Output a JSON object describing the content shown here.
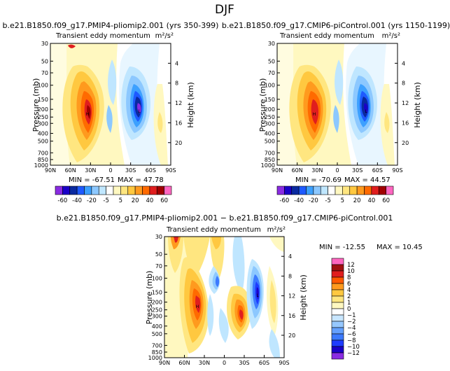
{
  "page": {
    "season": "DJF"
  },
  "colors": {
    "pal_top": [
      "#8a2be2",
      "#1a00c8",
      "#0a2aa0",
      "#1e5aff",
      "#3ca0ff",
      "#8cc8ff",
      "#bfe6ff",
      "#ffffff",
      "#fff8c0",
      "#ffe680",
      "#ffc840",
      "#ff9a1e",
      "#ff6a00",
      "#e01e1e",
      "#a00000",
      "#ff66c0"
    ],
    "pal_diff": [
      "#8a2be2",
      "#1a00c8",
      "#1e3cff",
      "#3c7aff",
      "#64a0ff",
      "#96c8ff",
      "#c8e6ff",
      "#ffffff",
      "#fff8c0",
      "#ffe680",
      "#ffc840",
      "#ff9a1e",
      "#ff5a00",
      "#e01e1e",
      "#a01010",
      "#ff66c0"
    ],
    "outline": "#000000"
  },
  "chart_data": [
    {
      "type": "contour",
      "title": "b.e21.B1850.f09_g17.PMIP4-pliomip2.001 (yrs 350-399)",
      "subtitle": "Transient eddy momentum",
      "units": "m²/s²",
      "xlabel": "",
      "ylabel": "Pressure (mb)",
      "ylabel_right": "Height (km)",
      "x_ticks": [
        "90N",
        "60N",
        "30N",
        "0",
        "30S",
        "60S",
        "90S"
      ],
      "y_ticks": [
        "30",
        "50",
        "70",
        "100",
        "150",
        "200",
        "250",
        "300",
        "400",
        "500",
        "700",
        "850",
        "1000"
      ],
      "y_right_ticks": [
        "4",
        "8",
        "12",
        "16",
        "20"
      ],
      "min_label": "MIN = -67.51",
      "max_label": "MAX =  47.78",
      "levels": [
        "-60",
        "-40",
        "-20",
        "-5",
        "5",
        "20",
        "40",
        "60"
      ],
      "features": [
        {
          "lat": -32,
          "p": 250,
          "value": 47,
          "note": "positive maximum"
        },
        {
          "lat": 42,
          "p": 200,
          "value": -67,
          "note": "negative minimum"
        }
      ]
    },
    {
      "type": "contour",
      "title": "b.e21.B1850.f09_g17.CMIP6-piControl.001 (yrs 1150-1199)",
      "subtitle": "Transient eddy momentum",
      "units": "m²/s²",
      "xlabel": "",
      "ylabel": "Pressure (mb)",
      "ylabel_right": "Height (km)",
      "x_ticks": [
        "90N",
        "60N",
        "30N",
        "0",
        "30S",
        "60S",
        "90S"
      ],
      "y_ticks": [
        "30",
        "50",
        "70",
        "100",
        "150",
        "200",
        "250",
        "300",
        "400",
        "500",
        "700",
        "850",
        "1000"
      ],
      "y_right_ticks": [
        "4",
        "8",
        "12",
        "16",
        "20"
      ],
      "min_label": "MIN = -70.69",
      "max_label": "MAX =  44.57",
      "levels": [
        "-60",
        "-40",
        "-20",
        "-5",
        "5",
        "20",
        "40",
        "60"
      ],
      "features": [
        {
          "lat": -35,
          "p": 250,
          "value": 44,
          "note": "positive maximum"
        },
        {
          "lat": 40,
          "p": 220,
          "value": -70,
          "note": "negative minimum"
        }
      ]
    },
    {
      "type": "contour",
      "title": "b.e21.B1850.f09_g17.PMIP4-pliomip2.001 − b.e21.B1850.f09_g17.CMIP6-piControl.001",
      "subtitle": "Transient eddy momentum",
      "units": "m²/s²",
      "xlabel": "",
      "ylabel": "Pressure (mb)",
      "ylabel_right": "Height (km)",
      "x_ticks": [
        "90N",
        "60N",
        "30N",
        "0",
        "30S",
        "60S",
        "90S"
      ],
      "y_ticks": [
        "30",
        "50",
        "70",
        "100",
        "150",
        "200",
        "250",
        "300",
        "400",
        "500",
        "700",
        "850",
        "1000"
      ],
      "y_right_ticks": [
        "4",
        "8",
        "12",
        "16",
        "20"
      ],
      "min_label": "MIN = -12.55",
      "max_label": "MAX =  10.45",
      "levels": [
        "12",
        "10",
        "8",
        "6",
        "4",
        "2",
        "1",
        "0",
        "−1",
        "−2",
        "−4",
        "−6",
        "−8",
        "−10",
        "−12"
      ],
      "features": [
        {
          "lat": -40,
          "p": 250,
          "value": 8,
          "note": "positive maximum"
        },
        {
          "lat": 45,
          "p": 220,
          "value": -12,
          "note": "negative minimum"
        }
      ]
    }
  ]
}
